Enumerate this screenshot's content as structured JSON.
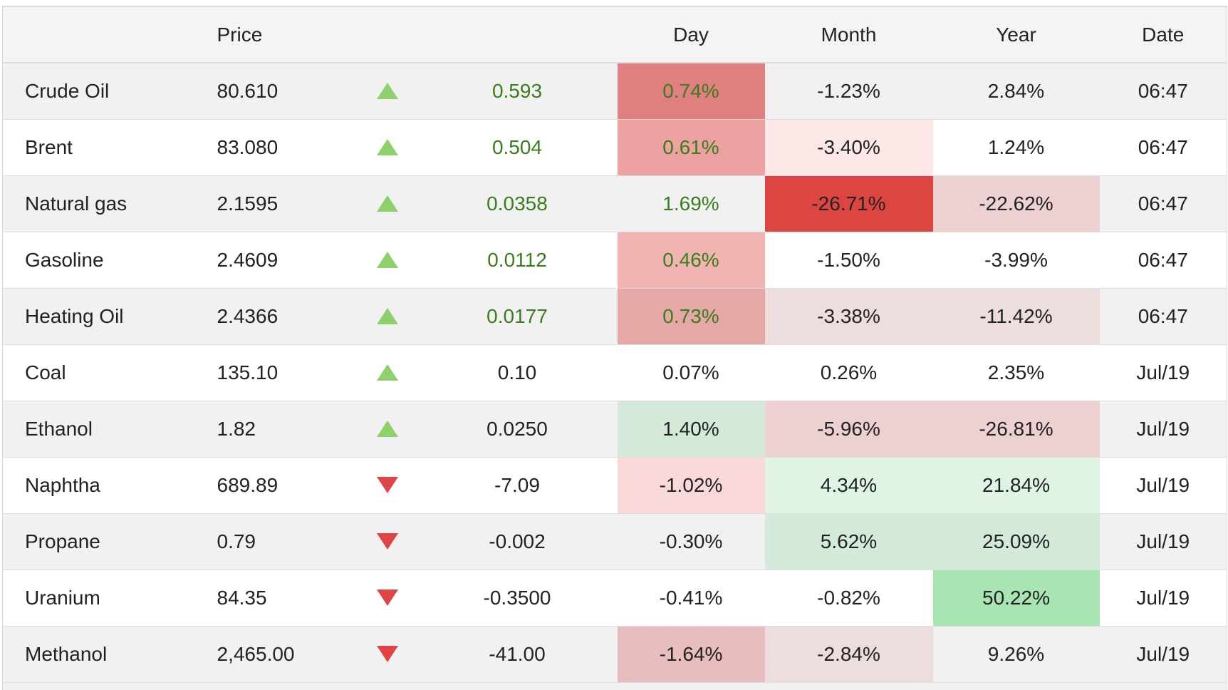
{
  "header": {
    "name": "",
    "price": "Price",
    "arrow": "",
    "change": "",
    "day": "Day",
    "month": "Month",
    "year": "Year",
    "date": "Date"
  },
  "rows": [
    {
      "name": "Crude Oil",
      "price": "80.610",
      "dir": "up",
      "change": "0.593",
      "change_color": "green",
      "day": "0.74%",
      "day_color": "green",
      "month": "-1.23%",
      "year": "2.84%",
      "date": "06:47",
      "day_bg": "#e08080",
      "month_bg": "",
      "year_bg": ""
    },
    {
      "name": "Brent",
      "price": "83.080",
      "dir": "up",
      "change": "0.504",
      "change_color": "green",
      "day": "0.61%",
      "day_color": "green",
      "month": "-3.40%",
      "year": "1.24%",
      "date": "06:47",
      "day_bg": "#eda2a2",
      "month_bg": "#fde8e8",
      "year_bg": ""
    },
    {
      "name": "Natural gas",
      "price": "2.1595",
      "dir": "up",
      "change": "0.0358",
      "change_color": "green",
      "day": "1.69%",
      "day_color": "green",
      "month": "-26.71%",
      "year": "-22.62%",
      "date": "06:47",
      "day_bg": "",
      "month_bg": "#dd4540",
      "year_bg": "#ecd0d2"
    },
    {
      "name": "Gasoline",
      "price": "2.4609",
      "dir": "up",
      "change": "0.0112",
      "change_color": "green",
      "day": "0.46%",
      "day_color": "green",
      "month": "-1.50%",
      "year": "-3.99%",
      "date": "06:47",
      "day_bg": "#f2b3b3",
      "month_bg": "",
      "year_bg": ""
    },
    {
      "name": "Heating Oil",
      "price": "2.4366",
      "dir": "up",
      "change": "0.0177",
      "change_color": "green",
      "day": "0.73%",
      "day_color": "green",
      "month": "-3.38%",
      "year": "-11.42%",
      "date": "06:47",
      "day_bg": "#e6a7a7",
      "month_bg": "#eedddd",
      "year_bg": "#eedddd"
    },
    {
      "name": "Coal",
      "price": "135.10",
      "dir": "up",
      "change": "0.10",
      "change_color": "",
      "day": "0.07%",
      "day_color": "",
      "month": "0.26%",
      "year": "2.35%",
      "date": "Jul/19",
      "day_bg": "",
      "month_bg": "",
      "year_bg": ""
    },
    {
      "name": "Ethanol",
      "price": "1.82",
      "dir": "up",
      "change": "0.0250",
      "change_color": "",
      "day": "1.40%",
      "day_color": "",
      "month": "-5.96%",
      "year": "-26.81%",
      "date": "Jul/19",
      "day_bg": "#d3e9d9",
      "month_bg": "#ecd0d2",
      "year_bg": "#ecd0d2"
    },
    {
      "name": "Naphtha",
      "price": "689.89",
      "dir": "down",
      "change": "-7.09",
      "change_color": "",
      "day": "-1.02%",
      "day_color": "",
      "month": "4.34%",
      "year": "21.84%",
      "date": "Jul/19",
      "day_bg": "#f9d9da",
      "month_bg": "#dff4e4",
      "year_bg": "#dff4e4"
    },
    {
      "name": "Propane",
      "price": "0.79",
      "dir": "down",
      "change": "-0.002",
      "change_color": "",
      "day": "-0.30%",
      "day_color": "",
      "month": "5.62%",
      "year": "25.09%",
      "date": "Jul/19",
      "day_bg": "",
      "month_bg": "#d3e9d9",
      "year_bg": "#d3e9d9"
    },
    {
      "name": "Uranium",
      "price": "84.35",
      "dir": "down",
      "change": "-0.3500",
      "change_color": "",
      "day": "-0.41%",
      "day_color": "",
      "month": "-0.82%",
      "year": "50.22%",
      "date": "Jul/19",
      "day_bg": "",
      "month_bg": "",
      "year_bg": "#a9e5b3"
    },
    {
      "name": "Methanol",
      "price": "2,465.00",
      "dir": "down",
      "change": "-41.00",
      "change_color": "",
      "day": "-1.64%",
      "day_color": "",
      "month": "-2.84%",
      "year": "9.26%",
      "date": "Jul/19",
      "day_bg": "#e7bdbe",
      "month_bg": "#eedddd",
      "year_bg": ""
    }
  ]
}
